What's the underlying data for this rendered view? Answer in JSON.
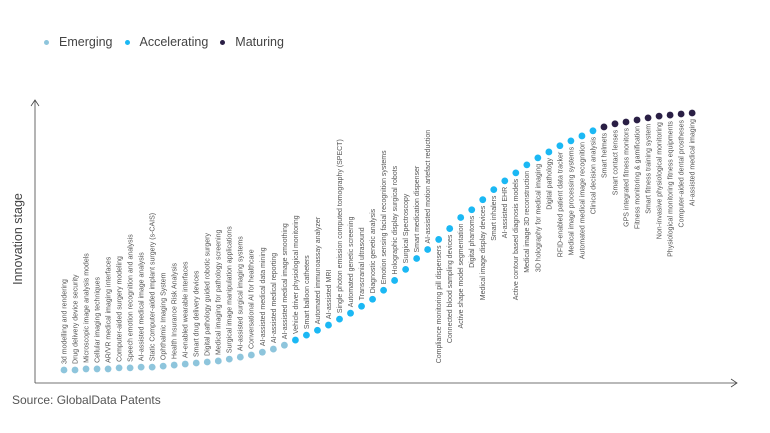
{
  "chart_data": {
    "type": "scatter",
    "title": "",
    "xlabel": "",
    "ylabel": "Innovation stage",
    "ylim": [
      0,
      100
    ],
    "grid": false,
    "legend_position": "top-left",
    "legend": [
      {
        "name": "Emerging",
        "color": "#8ec5dc"
      },
      {
        "name": "Accelerating",
        "color": "#1bb8f4"
      },
      {
        "name": "Maturing",
        "color": "#2a1f45"
      }
    ],
    "points": [
      {
        "label": "3d modelling and rendering",
        "stage": 0.4,
        "group": "Emerging"
      },
      {
        "label": "Drug delivery device security",
        "stage": 0.4,
        "group": "Emerging"
      },
      {
        "label": "Microscopic image analysis models",
        "stage": 0.8,
        "group": "Emerging"
      },
      {
        "label": "Cellular imaging techniques",
        "stage": 0.8,
        "group": "Emerging"
      },
      {
        "label": "AR/VR medical imaging interfaces",
        "stage": 0.8,
        "group": "Emerging"
      },
      {
        "label": "Computer-aided surgery modeling",
        "stage": 1.2,
        "group": "Emerging"
      },
      {
        "label": "Speech emotion recognition and analysis",
        "stage": 1.2,
        "group": "Emerging"
      },
      {
        "label": "AI-assisted medical image analysis",
        "stage": 1.5,
        "group": "Emerging"
      },
      {
        "label": "Static Computer-aided implant surgery (s-CAIS)",
        "stage": 1.5,
        "group": "Emerging"
      },
      {
        "label": "Ophthalmic Imaging System",
        "stage": 1.9,
        "group": "Emerging"
      },
      {
        "label": "Health Insurance Risk Analysis",
        "stage": 2.3,
        "group": "Emerging"
      },
      {
        "label": "AI-enabled wearable interfaces",
        "stage": 2.7,
        "group": "Emerging"
      },
      {
        "label": "Smart drug delivery devices",
        "stage": 3.1,
        "group": "Emerging"
      },
      {
        "label": "Digital pathology guided robotic surgery",
        "stage": 3.5,
        "group": "Emerging"
      },
      {
        "label": "Medical imaging for pathology screening",
        "stage": 3.9,
        "group": "Emerging"
      },
      {
        "label": "Surgical image manipulation applications",
        "stage": 4.6,
        "group": "Emerging"
      },
      {
        "label": "AI-assisted surgical imaging systems",
        "stage": 5.4,
        "group": "Emerging"
      },
      {
        "label": "Conversational AI for healthcare",
        "stage": 6.2,
        "group": "Emerging"
      },
      {
        "label": "AI-assisted medical data mining",
        "stage": 7.3,
        "group": "Emerging"
      },
      {
        "label": "AI-assisted medical reporting",
        "stage": 8.5,
        "group": "Emerging"
      },
      {
        "label": "AI-assisted medical image smoothing",
        "stage": 10.0,
        "group": "Emerging"
      },
      {
        "label": "Vehicle driver physiological monitoring",
        "stage": 12.0,
        "group": "Accelerating"
      },
      {
        "label": "Smart balloon catheters",
        "stage": 13.9,
        "group": "Accelerating"
      },
      {
        "label": "Automated immunoassay analyzer",
        "stage": 15.8,
        "group": "Accelerating"
      },
      {
        "label": "AI-assisted MRI",
        "stage": 17.8,
        "group": "Accelerating"
      },
      {
        "label": "Single photon emission computed tomography (SPECT)",
        "stage": 20.1,
        "group": "Accelerating"
      },
      {
        "label": "Automated genetic screening",
        "stage": 22.4,
        "group": "Accelerating"
      },
      {
        "label": "Transcranial ultrasound",
        "stage": 25.1,
        "group": "Accelerating"
      },
      {
        "label": "Diagnostic genetic analysis",
        "stage": 27.8,
        "group": "Accelerating"
      },
      {
        "label": "Emotion sensing facial recognition systems",
        "stage": 31.3,
        "group": "Accelerating"
      },
      {
        "label": "Holographic display surgical robots",
        "stage": 35.1,
        "group": "Accelerating"
      },
      {
        "label": "Surgical Spectroscopy",
        "stage": 39.4,
        "group": "Accelerating"
      },
      {
        "label": "Smart medication dispenser",
        "stage": 43.6,
        "group": "Accelerating"
      },
      {
        "label": "AI-assisted motion artefact reduction",
        "stage": 47.1,
        "group": "Accelerating"
      },
      {
        "label": "Compliance monitoring pill dispensers",
        "stage": 51.0,
        "group": "Accelerating"
      },
      {
        "label": "Connected blood sampling devices",
        "stage": 55.2,
        "group": "Accelerating"
      },
      {
        "label": "Active shape model segmentation",
        "stage": 59.5,
        "group": "Accelerating"
      },
      {
        "label": "Digital phantoms",
        "stage": 62.5,
        "group": "Accelerating"
      },
      {
        "label": "Medical image display devices",
        "stage": 66.4,
        "group": "Accelerating"
      },
      {
        "label": "Smart inhalers",
        "stage": 70.3,
        "group": "Accelerating"
      },
      {
        "label": "AI-assisted EHR",
        "stage": 73.7,
        "group": "Accelerating"
      },
      {
        "label": "Active contour based diagnosis models",
        "stage": 76.8,
        "group": "Accelerating"
      },
      {
        "label": "Medical image 3D reconstruction",
        "stage": 79.9,
        "group": "Accelerating"
      },
      {
        "label": "3D holography for medical imaging",
        "stage": 82.6,
        "group": "Accelerating"
      },
      {
        "label": "Digital pathology",
        "stage": 84.9,
        "group": "Accelerating"
      },
      {
        "label": "RFID-enabled patient data tracker",
        "stage": 87.3,
        "group": "Accelerating"
      },
      {
        "label": "Medical image processing systems",
        "stage": 89.2,
        "group": "Accelerating"
      },
      {
        "label": "Automated medical image recognition",
        "stage": 91.1,
        "group": "Accelerating"
      },
      {
        "label": "Clinical decision analysis",
        "stage": 93.1,
        "group": "Accelerating"
      },
      {
        "label": "Smart helmets",
        "stage": 94.6,
        "group": "Maturing"
      },
      {
        "label": "Smart contact lenses",
        "stage": 95.8,
        "group": "Maturing"
      },
      {
        "label": "GPS integrated fitness monitors",
        "stage": 96.5,
        "group": "Maturing"
      },
      {
        "label": "Fitness monitoring & gamification",
        "stage": 97.3,
        "group": "Maturing"
      },
      {
        "label": "Smart fitness training system",
        "stage": 98.1,
        "group": "Maturing"
      },
      {
        "label": "Non-invasive physiological monitoring",
        "stage": 98.8,
        "group": "Maturing"
      },
      {
        "label": "Physiological monitoring fitness equipments",
        "stage": 99.2,
        "group": "Maturing"
      },
      {
        "label": "Computer-aided dental prostheses",
        "stage": 99.6,
        "group": "Maturing"
      },
      {
        "label": "AI-assisted medical imaging",
        "stage": 100,
        "group": "Maturing"
      }
    ]
  },
  "source": "Source: GlobalData Patents"
}
